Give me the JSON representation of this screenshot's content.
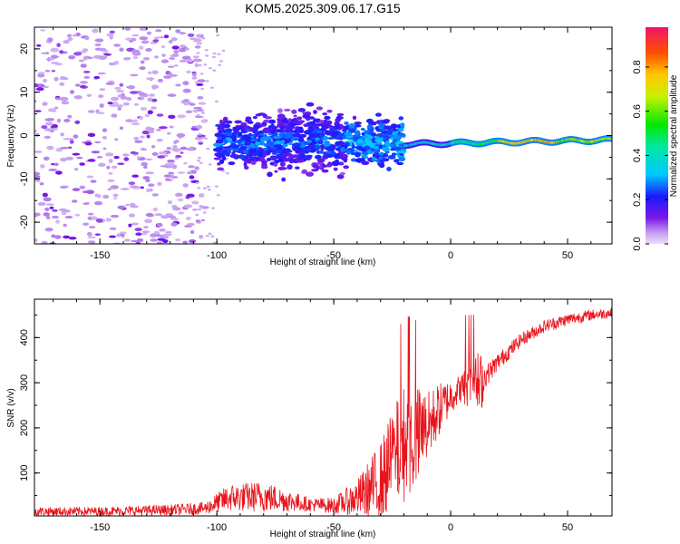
{
  "title": "KOM5.2025.309.06.17.G15",
  "colorbar": {
    "label": "Normalized spectral amplitude",
    "ticks": [
      "0.0",
      "0.2",
      "0.4",
      "0.6",
      "0.8"
    ],
    "tick_values": [
      0.0,
      0.2,
      0.4,
      0.6,
      0.8
    ],
    "range": [
      0.0,
      0.98
    ]
  },
  "chart_data": [
    {
      "type": "heatmap",
      "name": "spectrogram",
      "xlabel": "Height of straight line (km)",
      "ylabel": "Frequency (Hz)",
      "xlim": [
        -178,
        69
      ],
      "ylim": [
        -25,
        25
      ],
      "xticks": [
        -150,
        -100,
        -50,
        0,
        50
      ],
      "xtick_labels": [
        "-150",
        "-100",
        "-50",
        "0",
        "50"
      ],
      "yticks": [
        -20,
        -10,
        0,
        10,
        20
      ],
      "ytick_labels": [
        "-20",
        "-10",
        "0",
        "10",
        "20"
      ],
      "description_points": {
        "noise_region_x": [
          -178,
          -105
        ],
        "cluster_region_x": [
          -100,
          -20
        ],
        "cluster_center_freq": -1.5,
        "line_region_x": [
          -20,
          69
        ],
        "line_freq_start": -2.0,
        "line_freq_end": -1.0
      }
    },
    {
      "type": "line",
      "name": "snr",
      "xlabel": "Height of straight line (km)",
      "ylabel": "SNR (v/v)",
      "xlim": [
        -178,
        69
      ],
      "ylim": [
        5,
        485
      ],
      "xticks": [
        -150,
        -100,
        -50,
        0,
        50
      ],
      "xtick_labels": [
        "-150",
        "-100",
        "-50",
        "0",
        "50"
      ],
      "yticks": [
        100,
        200,
        300,
        400
      ],
      "ytick_labels": [
        "100",
        "200",
        "300",
        "400"
      ],
      "color": "#e8141c",
      "envelope": {
        "x": [
          -178,
          -150,
          -120,
          -105,
          -95,
          -80,
          -60,
          -50,
          -40,
          -30,
          -25,
          -20,
          -15,
          -10,
          -5,
          0,
          5,
          8,
          10,
          12,
          15,
          20,
          25,
          30,
          40,
          50,
          60,
          69
        ],
        "base": [
          15,
          15,
          18,
          22,
          45,
          48,
          30,
          28,
          45,
          80,
          130,
          165,
          175,
          200,
          240,
          270,
          290,
          300,
          310,
          290,
          315,
          345,
          370,
          395,
          425,
          440,
          450,
          455
        ],
        "amp": [
          10,
          10,
          12,
          14,
          30,
          35,
          15,
          18,
          40,
          90,
          110,
          130,
          120,
          80,
          60,
          40,
          30,
          80,
          35,
          90,
          25,
          20,
          18,
          15,
          14,
          14,
          12,
          12
        ]
      }
    }
  ]
}
